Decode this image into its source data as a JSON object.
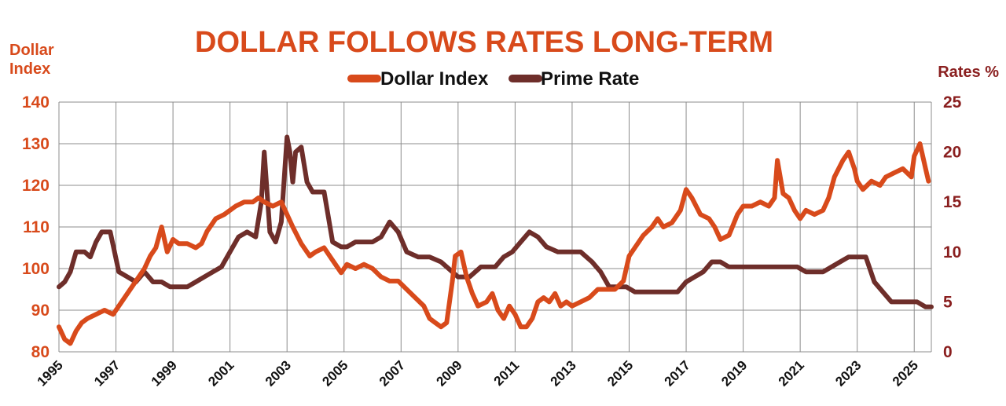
{
  "colors": {
    "dollar": "#d84a1b",
    "prime": "#6e2e2a",
    "left_axis": "#d84a1b",
    "right_axis": "#8a1f1f",
    "grid": "#8c8c8c",
    "frame": "#9a9a9a"
  },
  "chart_data": {
    "type": "line",
    "title": "DOLLAR FOLLOWS RATES LONG-TERM",
    "ylabel_left": "Dollar Index",
    "ylabel_right": "Rates %",
    "ylim_left": [
      80,
      140
    ],
    "ylim_right": [
      0,
      25
    ],
    "xlim": [
      1995,
      2025.6
    ],
    "x_ticks": [
      "1995",
      "1997",
      "1999",
      "2001",
      "2003",
      "2005",
      "2007",
      "2009",
      "2011",
      "2013",
      "2015",
      "2017",
      "2019",
      "2021",
      "2023",
      "2025"
    ],
    "y_ticks_left": [
      "80",
      "90",
      "100",
      "110",
      "120",
      "130",
      "140"
    ],
    "y_ticks_right": [
      "0",
      "5",
      "10",
      "15",
      "20",
      "25"
    ],
    "grid": true,
    "legend_position": "top-center",
    "series": [
      {
        "name": "Dollar Index",
        "axis": "left",
        "x": [
          1995.0,
          1995.2,
          1995.4,
          1995.6,
          1995.8,
          1996.0,
          1996.3,
          1996.6,
          1996.9,
          1997.2,
          1997.5,
          1997.8,
          1998.0,
          1998.2,
          1998.4,
          1998.6,
          1998.8,
          1999.0,
          1999.2,
          1999.5,
          1999.8,
          2000.0,
          2000.2,
          2000.5,
          2000.8,
          2001.0,
          2001.2,
          2001.5,
          2001.8,
          2002.0,
          2002.2,
          2002.5,
          2002.8,
          2003.0,
          2003.2,
          2003.5,
          2003.8,
          2004.0,
          2004.3,
          2004.6,
          2004.9,
          2005.1,
          2005.4,
          2005.7,
          2006.0,
          2006.3,
          2006.6,
          2006.9,
          2007.2,
          2007.5,
          2007.8,
          2008.0,
          2008.2,
          2008.4,
          2008.6,
          2008.8,
          2008.9,
          2009.1,
          2009.3,
          2009.5,
          2009.7,
          2010.0,
          2010.2,
          2010.4,
          2010.6,
          2010.8,
          2011.0,
          2011.2,
          2011.4,
          2011.6,
          2011.8,
          2012.0,
          2012.2,
          2012.4,
          2012.6,
          2012.8,
          2013.0,
          2013.3,
          2013.6,
          2013.9,
          2014.2,
          2014.5,
          2014.8,
          2015.0,
          2015.2,
          2015.5,
          2015.8,
          2016.0,
          2016.2,
          2016.5,
          2016.8,
          2017.0,
          2017.2,
          2017.5,
          2017.8,
          2018.0,
          2018.2,
          2018.5,
          2018.8,
          2019.0,
          2019.3,
          2019.6,
          2019.9,
          2020.1,
          2020.2,
          2020.4,
          2020.6,
          2020.8,
          2021.0,
          2021.2,
          2021.5,
          2021.8,
          2022.0,
          2022.2,
          2022.5,
          2022.7,
          2022.9,
          2023.0,
          2023.2,
          2023.5,
          2023.8,
          2024.0,
          2024.3,
          2024.6,
          2024.9,
          2025.0,
          2025.2,
          2025.4,
          2025.5
        ],
        "values": [
          86,
          83,
          82,
          85,
          87,
          88,
          89,
          90,
          89,
          92,
          95,
          98,
          100,
          103,
          105,
          110,
          104,
          107,
          106,
          106,
          105,
          106,
          109,
          112,
          113,
          114,
          115,
          116,
          116,
          117,
          116,
          115,
          116,
          113,
          110,
          106,
          103,
          104,
          105,
          102,
          99,
          101,
          100,
          101,
          100,
          98,
          97,
          97,
          95,
          93,
          91,
          88,
          87,
          86,
          87,
          97,
          103,
          104,
          98,
          94,
          91,
          92,
          94,
          90,
          88,
          91,
          89,
          86,
          86,
          88,
          92,
          93,
          92,
          94,
          91,
          92,
          91,
          92,
          93,
          95,
          95,
          95,
          97,
          103,
          105,
          108,
          110,
          112,
          110,
          111,
          114,
          119,
          117,
          113,
          112,
          110,
          107,
          108,
          113,
          115,
          115,
          116,
          115,
          117,
          126,
          118,
          117,
          114,
          112,
          114,
          113,
          114,
          117,
          122,
          126,
          128,
          124,
          121,
          119,
          121,
          120,
          122,
          123,
          124,
          122,
          127,
          130,
          124,
          121
        ]
      },
      {
        "name": "Prime Rate",
        "axis": "right",
        "x": [
          1995.0,
          1995.2,
          1995.4,
          1995.6,
          1995.9,
          1996.1,
          1996.3,
          1996.5,
          1996.8,
          1997.1,
          1997.4,
          1997.7,
          1998.0,
          1998.3,
          1998.6,
          1998.9,
          1999.2,
          1999.5,
          1999.8,
          2000.1,
          2000.4,
          2000.7,
          2001.0,
          2001.3,
          2001.6,
          2001.9,
          2002.1,
          2002.2,
          2002.4,
          2002.6,
          2002.8,
          2003.0,
          2003.1,
          2003.2,
          2003.3,
          2003.5,
          2003.7,
          2003.9,
          2004.1,
          2004.3,
          2004.6,
          2004.9,
          2005.1,
          2005.4,
          2005.7,
          2006.0,
          2006.3,
          2006.6,
          2006.9,
          2007.2,
          2007.6,
          2008.0,
          2008.4,
          2008.8,
          2009.0,
          2009.4,
          2009.8,
          2010.0,
          2010.3,
          2010.6,
          2010.9,
          2011.2,
          2011.5,
          2011.8,
          2012.1,
          2012.5,
          2012.9,
          2013.3,
          2013.7,
          2014.0,
          2014.3,
          2014.6,
          2014.9,
          2015.2,
          2015.6,
          2016.0,
          2016.4,
          2016.7,
          2017.0,
          2017.3,
          2017.6,
          2017.9,
          2018.2,
          2018.5,
          2018.8,
          2019.1,
          2019.4,
          2019.7,
          2020.0,
          2020.3,
          2020.6,
          2020.9,
          2021.2,
          2021.5,
          2021.8,
          2022.1,
          2022.4,
          2022.7,
          2023.0,
          2023.3,
          2023.6,
          2023.9,
          2024.2,
          2024.5,
          2024.8,
          2025.1,
          2025.4,
          2025.6
        ],
        "values": [
          6.5,
          7,
          8,
          10,
          10,
          9.5,
          11,
          12,
          12,
          8,
          7.5,
          7,
          8,
          7,
          7,
          6.5,
          6.5,
          6.5,
          7,
          7.5,
          8,
          8.5,
          10,
          11.5,
          12,
          11.5,
          15,
          20,
          12,
          11,
          13,
          21.5,
          20,
          17,
          20,
          20.5,
          17,
          16,
          16,
          16,
          11,
          10.5,
          10.5,
          11,
          11,
          11,
          11.5,
          13,
          12,
          10,
          9.5,
          9.5,
          9,
          8,
          7.5,
          7.5,
          8.5,
          8.5,
          8.5,
          9.5,
          10,
          11,
          12,
          11.5,
          10.5,
          10,
          10,
          10,
          9,
          8,
          6.5,
          6.5,
          6.5,
          6,
          6,
          6,
          6,
          6,
          7,
          7.5,
          8,
          9,
          9,
          8.5,
          8.5,
          8.5,
          8.5,
          8.5,
          8.5,
          8.5,
          8.5,
          8.5,
          8,
          8,
          8,
          8.5,
          9,
          9.5,
          9.5,
          9.5,
          7,
          6,
          5,
          5,
          5,
          5,
          4.5,
          4.5
        ]
      }
    ]
  }
}
